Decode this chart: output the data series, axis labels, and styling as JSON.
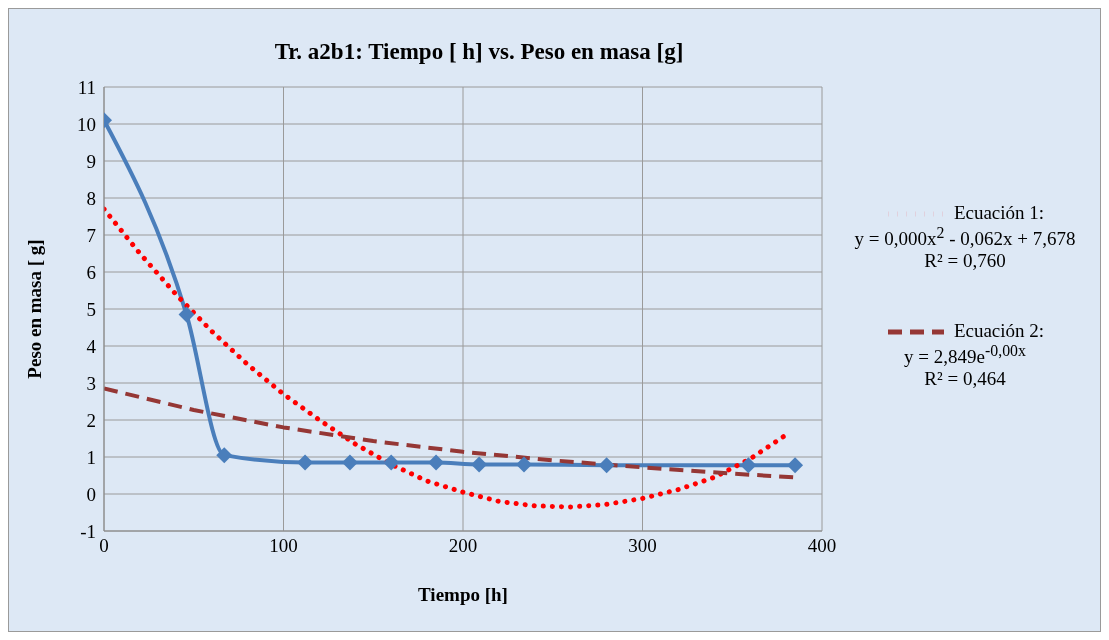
{
  "chart_data": {
    "type": "line",
    "title": "Tr. a2b1: Tiempo [ h] vs. Peso en masa [g]",
    "xlabel": "Tiempo [h]",
    "ylabel": "Peso en masa [ g]",
    "xlim": [
      0,
      400
    ],
    "xticks": [
      0,
      100,
      200,
      300,
      400
    ],
    "ylim": [
      -1,
      11
    ],
    "yticks": [
      -1,
      0,
      1,
      2,
      3,
      4,
      5,
      6,
      7,
      8,
      9,
      10,
      11
    ],
    "grid": true,
    "legend": "right",
    "series": [
      {
        "color": "#4a7ebb",
        "marker": "diamond",
        "line_style": "solid",
        "x": [
          0,
          46,
          67,
          112,
          137,
          160,
          185,
          209,
          234,
          280,
          359,
          385
        ],
        "values": [
          10.1,
          4.85,
          1.05,
          0.85,
          0.85,
          0.85,
          0.85,
          0.8,
          0.8,
          0.78,
          0.78,
          0.78
        ]
      },
      {
        "name": "Ecuación 1:\ny = 0,000x$^{2}$ - 0,062x + 7,678\nR² = 0,760",
        "color": "#ff0000",
        "marker": "none",
        "line_style": "dotted",
        "x": [
          0,
          20,
          40,
          60,
          80,
          100,
          120,
          140,
          160,
          180,
          200,
          220,
          240,
          260,
          280,
          300,
          320,
          340,
          360,
          380
        ],
        "values": [
          7.7,
          6.5,
          5.4,
          4.4,
          3.5,
          2.7,
          2.0,
          1.35,
          0.8,
          0.35,
          0.05,
          -0.2,
          -0.32,
          -0.35,
          -0.28,
          -0.12,
          0.12,
          0.45,
          0.95,
          1.6
        ]
      },
      {
        "name": "Ecuación 2:\ny = 2,849e$^{-0,00x}$\nR² = 0,464",
        "color": "#953735",
        "marker": "none",
        "line_style": "dashed",
        "x": [
          0,
          50,
          100,
          150,
          200,
          250,
          300,
          350,
          385
        ],
        "values": [
          2.85,
          2.27,
          1.8,
          1.43,
          1.14,
          0.91,
          0.72,
          0.55,
          0.45
        ]
      }
    ]
  }
}
